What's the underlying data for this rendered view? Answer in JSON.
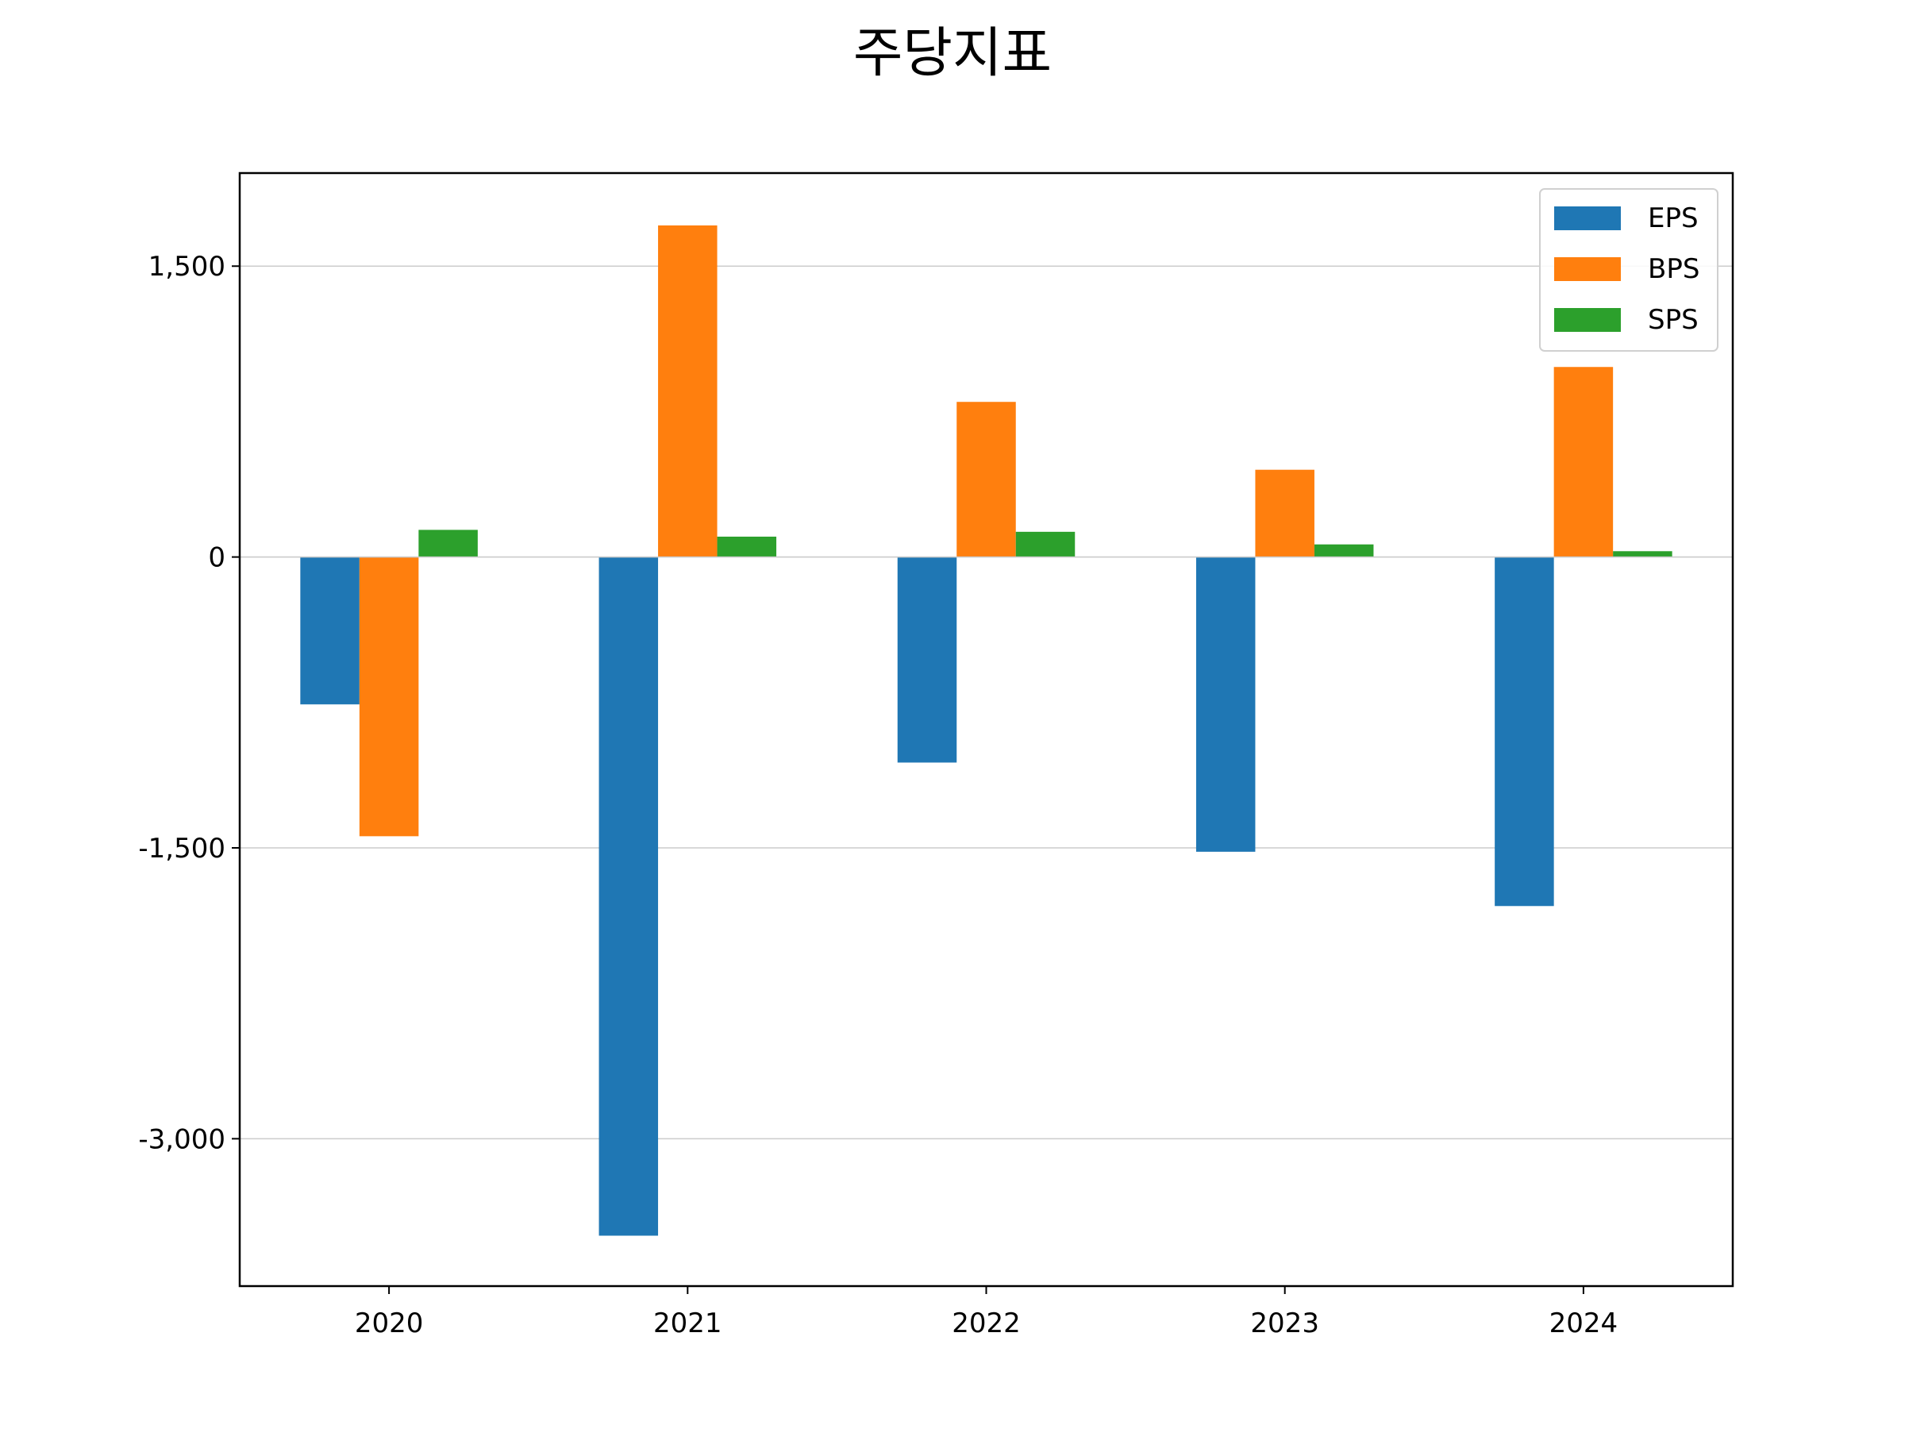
{
  "chart_data": {
    "type": "bar",
    "title": "주당지표",
    "xlabel": "",
    "ylabel": "",
    "categories": [
      "2020",
      "2021",
      "2022",
      "2023",
      "2024"
    ],
    "series": [
      {
        "name": "EPS",
        "color": "#1f77b4",
        "values": [
          -760,
          -3500,
          -1060,
          -1520,
          -1800
        ]
      },
      {
        "name": "BPS",
        "color": "#ff7f0e",
        "values": [
          -1440,
          1710,
          800,
          450,
          980
        ]
      },
      {
        "name": "SPS",
        "color": "#2ca02c",
        "values": [
          140,
          105,
          130,
          65,
          30
        ]
      }
    ],
    "ylim": [
      -3760,
      1980
    ],
    "yticks": [
      1500,
      0,
      -1500,
      -3000
    ],
    "ytick_labels": [
      "1,500",
      "0",
      "-1,500",
      "-3,000"
    ],
    "grid": true,
    "legend_position": "top-right"
  }
}
